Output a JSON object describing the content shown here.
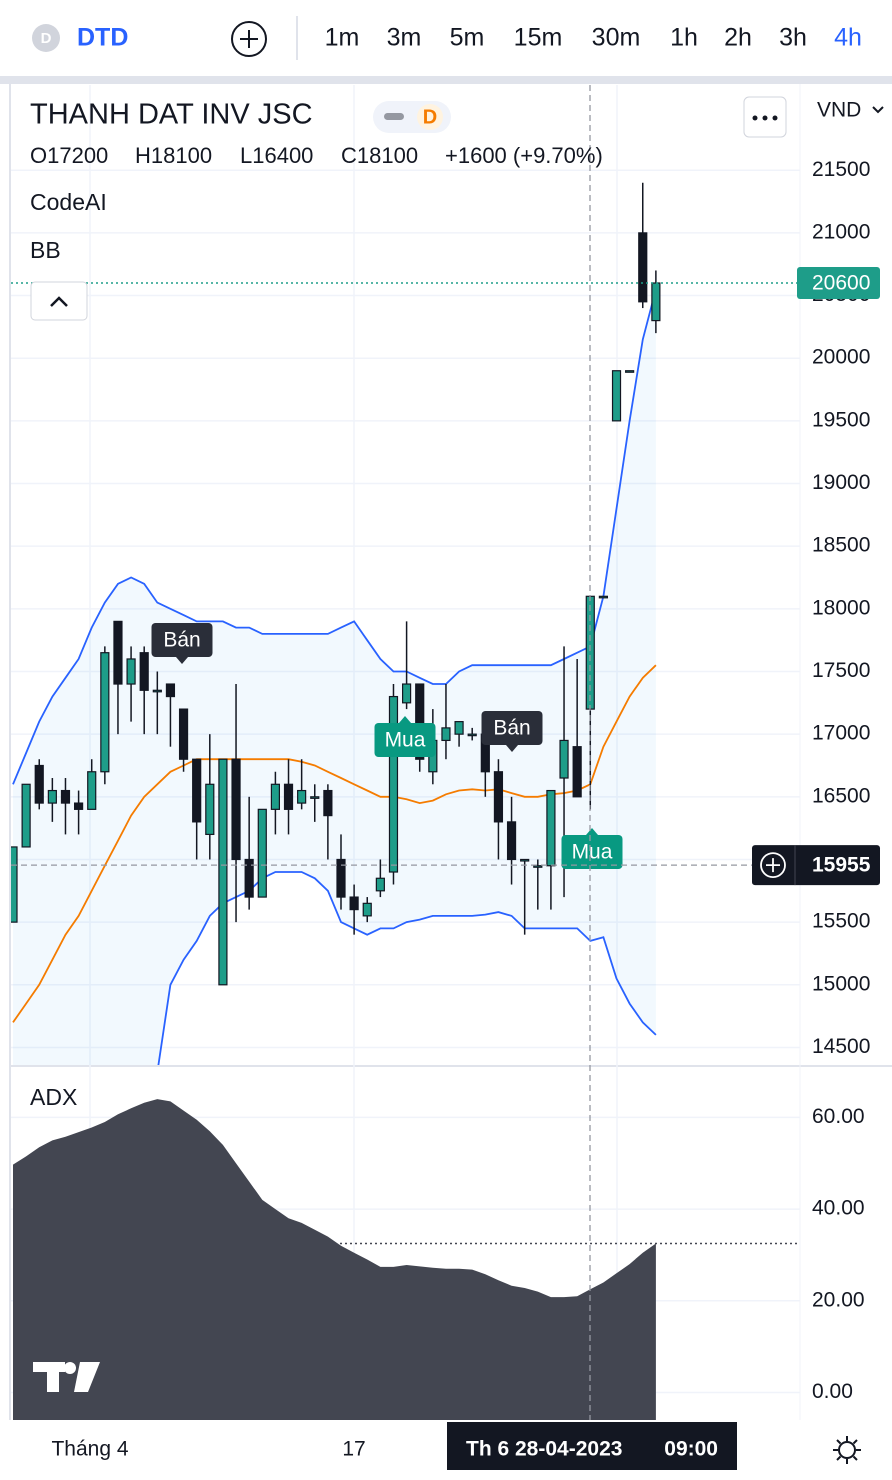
{
  "toolbar": {
    "symbol_icon": "D",
    "symbol": "DTD",
    "timeframes": [
      "1m",
      "3m",
      "5m",
      "15m",
      "30m",
      "1h",
      "2h",
      "3h",
      "4h"
    ],
    "active_timeframe": "4h"
  },
  "header": {
    "title": "THANH DAT INV JSC",
    "badge": "D",
    "ohlc": [
      "O17200",
      "H18100",
      "L16400",
      "C18100",
      "+1600 (+9.70%)"
    ],
    "indicators": [
      "CodeAI",
      "BB"
    ],
    "currency": "VND"
  },
  "chart_data": {
    "type": "candlestick",
    "open": [
      15500,
      16100,
      16750,
      16450,
      16550,
      16450,
      16400,
      16700,
      17900,
      17400,
      17650,
      17350,
      17400,
      17200,
      16800,
      16200,
      15000,
      16800,
      16000,
      15700,
      16400,
      16600,
      16450,
      16500,
      16550,
      16000,
      15700,
      15550,
      15750,
      15900,
      17250,
      17400,
      16700,
      16950,
      17000,
      17000,
      17000,
      16700,
      16300,
      16000,
      15950,
      15950,
      16650,
      16900,
      17200,
      18100,
      19500,
      19900,
      21000,
      20300
    ],
    "high": [
      16100,
      16600,
      16800,
      16650,
      16650,
      16550,
      16800,
      17700,
      17900,
      17700,
      17700,
      17500,
      17400,
      17200,
      16800,
      17000,
      16800,
      17400,
      16500,
      16400,
      16700,
      16800,
      16800,
      16600,
      16600,
      16200,
      15800,
      15700,
      16000,
      17400,
      17900,
      17400,
      17200,
      17400,
      17100,
      17050,
      17050,
      16800,
      16500,
      16000,
      16000,
      16550,
      17700,
      17600,
      18100,
      18100,
      19900,
      19900,
      21400,
      20700
    ],
    "low": [
      15500,
      16100,
      16400,
      16300,
      16200,
      16200,
      16400,
      16600,
      17000,
      17100,
      17000,
      17000,
      16900,
      16700,
      16000,
      16000,
      15000,
      15500,
      15600,
      15700,
      16200,
      16200,
      16400,
      16300,
      16000,
      15600,
      15400,
      15500,
      15700,
      15800,
      17200,
      16700,
      16600,
      16800,
      16900,
      16950,
      16500,
      16000,
      15800,
      15400,
      15600,
      15600,
      15700,
      16500,
      16400,
      18100,
      19500,
      19900,
      20400,
      20200
    ],
    "close": [
      16100,
      16600,
      16450,
      16550,
      16450,
      16400,
      16700,
      17650,
      17400,
      17600,
      17350,
      17350,
      17300,
      16800,
      16300,
      16600,
      16800,
      16000,
      15700,
      16400,
      16600,
      16400,
      16550,
      16500,
      16350,
      15700,
      15600,
      15650,
      15850,
      17300,
      17400,
      16800,
      16950,
      17050,
      17100,
      17000,
      16700,
      16300,
      16000,
      16000,
      15950,
      16550,
      16950,
      16500,
      18100,
      18100,
      19900,
      19900,
      20450,
      20600
    ],
    "up_color": "#1e9d89",
    "down_color": "#131722",
    "bands": {
      "fill": "#2196f3",
      "upper": [
        16600,
        16850,
        17100,
        17300,
        17450,
        17600,
        17850,
        18050,
        18200,
        18250,
        18200,
        18050,
        18000,
        17950,
        17900,
        17900,
        17900,
        17850,
        17850,
        17800,
        17800,
        17800,
        17800,
        17800,
        17800,
        17850,
        17900,
        17750,
        17600,
        17500,
        17500,
        17450,
        17400,
        17400,
        17500,
        17550,
        17550,
        17550,
        17550,
        17550,
        17550,
        17550,
        17600,
        17650,
        17700,
        18100,
        18800,
        19500,
        20150,
        20550
      ],
      "middle": [
        14700,
        14850,
        15000,
        15200,
        15400,
        15550,
        15750,
        15950,
        16150,
        16350,
        16500,
        16600,
        16700,
        16750,
        16800,
        16800,
        16800,
        16800,
        16800,
        16800,
        16800,
        16800,
        16780,
        16750,
        16700,
        16650,
        16600,
        16550,
        16500,
        16500,
        16480,
        16450,
        16470,
        16520,
        16550,
        16560,
        16550,
        16560,
        16530,
        16500,
        16500,
        16520,
        16530,
        16550,
        16600,
        16900,
        17100,
        17300,
        17450,
        17550
      ],
      "lower": [
        12300,
        12500,
        12700,
        12900,
        13100,
        13300,
        13500,
        13700,
        13900,
        14100,
        14200,
        14300,
        15000,
        15200,
        15350,
        15550,
        15650,
        15700,
        15750,
        15850,
        15900,
        15900,
        15900,
        15850,
        15750,
        15500,
        15450,
        15400,
        15450,
        15450,
        15500,
        15520,
        15550,
        15550,
        15550,
        15550,
        15560,
        15580,
        15550,
        15450,
        15450,
        15450,
        15450,
        15450,
        15350,
        15380,
        15050,
        14850,
        14700,
        14600
      ],
      "upper_color": "#2962ff",
      "middle_color": "#f57c00",
      "lower_color": "#2962ff"
    },
    "ylim": [
      14360,
      22180
    ],
    "yticks": [
      14500,
      15000,
      15500,
      16000,
      16500,
      17000,
      17500,
      18000,
      18500,
      19000,
      19500,
      20000,
      20500,
      21000,
      21500
    ],
    "last_price": 20600,
    "last_price_color": "#1e9d89",
    "crosshair_price": 15955,
    "crosshair_time": "Th 6 28-04-2023",
    "crosshair_clock": "09:00",
    "x_labels": [
      "Tháng 4",
      "17"
    ],
    "signals": [
      {
        "text": "Bán"
      },
      {
        "text": "Mua"
      },
      {
        "text": "Bán"
      },
      {
        "text": "Mua"
      }
    ],
    "grid": true,
    "adx": {
      "title": "ADX",
      "color": "#434651",
      "values": [
        49.7,
        51.5,
        53.5,
        55,
        55.8,
        56.8,
        57.8,
        59,
        60.7,
        62,
        63.2,
        64,
        63.5,
        61.5,
        59.5,
        57,
        54,
        50,
        46,
        42,
        40,
        38,
        37,
        35.5,
        34,
        32,
        30.5,
        29,
        27.4,
        27.4,
        27.8,
        27.5,
        27.2,
        27,
        27,
        26.8,
        25.8,
        24.5,
        23.3,
        22.8,
        22,
        20.8,
        20.8,
        21,
        22.5,
        24,
        26,
        28,
        30.5,
        32.5
      ],
      "ylim": [
        -6,
        71
      ],
      "yticks": [
        {
          "value": 0,
          "label": "0.00"
        },
        {
          "value": 20,
          "label": "20.00"
        },
        {
          "value": 40,
          "label": "40.00"
        },
        {
          "value": 60,
          "label": "60.00"
        }
      ]
    }
  }
}
